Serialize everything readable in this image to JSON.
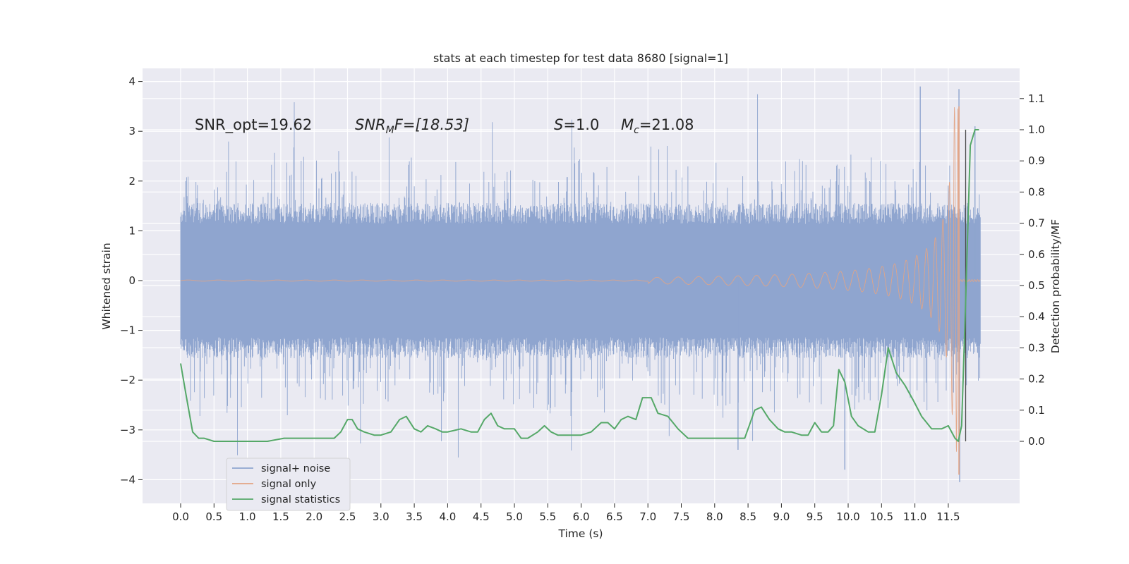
{
  "chart_data": {
    "type": "line",
    "title": "stats at each timestep for test data 8680 [signal=1]",
    "xlabel": "Time (s)",
    "ylabel": "Whitened strain",
    "ylabel_right": "Detection probability/MF",
    "xlim": [
      -0.58,
      12.54
    ],
    "ylim": [
      -4.45,
      4.25
    ],
    "ylim_right": [
      -0.2,
      1.2
    ],
    "xticks": [
      "0.0",
      "0.5",
      "1.0",
      "1.5",
      "2.0",
      "2.5",
      "3.0",
      "3.5",
      "4.0",
      "4.5",
      "5.0",
      "5.5",
      "6.0",
      "6.5",
      "7.0",
      "7.5",
      "8.0",
      "8.5",
      "9.0",
      "9.5",
      "10.0",
      "10.5",
      "11.0",
      "11.5"
    ],
    "yticks": [
      "4",
      "3",
      "2",
      "1",
      "0",
      "−1",
      "−2",
      "−3",
      "−4"
    ],
    "yticks_right": [
      "1.1",
      "1.0",
      "0.9",
      "0.8",
      "0.7",
      "0.6",
      "0.5",
      "0.4",
      "0.3",
      "0.2",
      "0.1",
      "0.0"
    ],
    "grid": true,
    "legend_position": "lower-left",
    "background": "#eaeaf2",
    "annotations": {
      "snr_opt": "SNR_opt=19.62",
      "snr_mf_main": "SNR",
      "snr_mf_sub": "M",
      "snr_mf_rest": "F=[18.53]",
      "s_var": "S",
      "s_value": "=1.0",
      "mc_var": "M",
      "mc_sub": "c",
      "mc_value": "=21.08"
    },
    "series": [
      {
        "name": "signal+ noise",
        "color": "#8fa5cf",
        "axis": "left",
        "description_of_shape": "dense noisy strain",
        "t_range": [
          0.0,
          11.98
        ],
        "typical_envelope": 1.2,
        "peak_max": 3.9,
        "peak_min": -4.05
      },
      {
        "name": "signal only",
        "color": "#e3a485",
        "axis": "left",
        "chirp_start": 7.0,
        "merger_time": 11.66,
        "peak_amplitude": 3.5,
        "ringdown_min": -3.9
      },
      {
        "name": "signal statistics",
        "color": "#55a868",
        "axis": "right",
        "x": [
          0.0,
          0.08,
          0.18,
          0.27,
          0.35,
          0.5,
          0.7,
          1.0,
          1.3,
          1.55,
          1.75,
          2.0,
          2.1,
          2.2,
          2.3,
          2.4,
          2.5,
          2.57,
          2.65,
          2.75,
          2.9,
          3.0,
          3.15,
          3.28,
          3.38,
          3.5,
          3.6,
          3.7,
          3.82,
          3.92,
          4.0,
          4.2,
          4.35,
          4.45,
          4.55,
          4.65,
          4.75,
          4.85,
          5.0,
          5.1,
          5.2,
          5.35,
          5.45,
          5.55,
          5.65,
          5.75,
          5.85,
          6.0,
          6.15,
          6.3,
          6.4,
          6.5,
          6.6,
          6.7,
          6.82,
          6.92,
          7.05,
          7.15,
          7.3,
          7.45,
          7.6,
          7.8,
          8.0,
          8.2,
          8.45,
          8.6,
          8.7,
          8.82,
          8.95,
          9.05,
          9.15,
          9.3,
          9.4,
          9.5,
          9.6,
          9.7,
          9.78,
          9.86,
          9.95,
          10.05,
          10.15,
          10.3,
          10.4,
          10.5,
          10.6,
          10.72,
          10.85,
          10.98,
          11.1,
          11.25,
          11.4,
          11.5,
          11.6,
          11.65,
          11.7,
          11.76,
          11.83,
          11.9,
          11.96
        ],
        "y": [
          0.25,
          0.15,
          0.03,
          0.01,
          0.01,
          0.0,
          0.0,
          0.0,
          0.0,
          0.01,
          0.01,
          0.01,
          0.01,
          0.01,
          0.01,
          0.03,
          0.07,
          0.07,
          0.04,
          0.03,
          0.02,
          0.02,
          0.03,
          0.07,
          0.08,
          0.04,
          0.03,
          0.05,
          0.04,
          0.03,
          0.03,
          0.04,
          0.03,
          0.03,
          0.07,
          0.09,
          0.05,
          0.04,
          0.04,
          0.01,
          0.01,
          0.03,
          0.05,
          0.03,
          0.02,
          0.02,
          0.02,
          0.02,
          0.03,
          0.06,
          0.06,
          0.04,
          0.07,
          0.08,
          0.07,
          0.14,
          0.14,
          0.09,
          0.08,
          0.04,
          0.01,
          0.01,
          0.01,
          0.01,
          0.01,
          0.1,
          0.11,
          0.07,
          0.04,
          0.03,
          0.03,
          0.02,
          0.02,
          0.06,
          0.03,
          0.03,
          0.05,
          0.23,
          0.19,
          0.08,
          0.05,
          0.03,
          0.03,
          0.15,
          0.3,
          0.22,
          0.18,
          0.13,
          0.08,
          0.04,
          0.04,
          0.05,
          0.01,
          0.0,
          0.05,
          0.45,
          0.95,
          1.0,
          1.0
        ]
      }
    ]
  },
  "legend": {
    "items": [
      {
        "label": "signal+ noise",
        "color": "#8fa5cf"
      },
      {
        "label": "signal only",
        "color": "#e3a485"
      },
      {
        "label": "signal statistics",
        "color": "#55a868"
      }
    ]
  }
}
